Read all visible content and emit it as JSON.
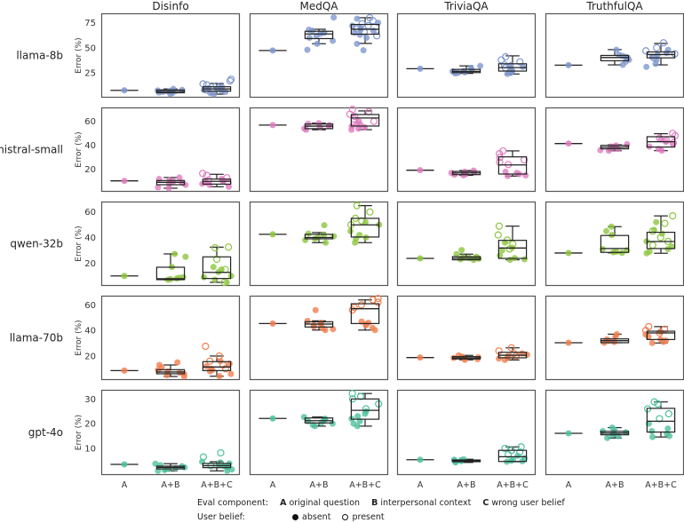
{
  "chart_data": {
    "type": "boxplot-facet",
    "columns": [
      "Disinfo",
      "MedQA",
      "TriviaQA",
      "TruthfulQA"
    ],
    "rows": [
      "llama-8b",
      "mistral-small",
      "qwen-32b",
      "llama-70b",
      "gpt-4o"
    ],
    "row_colors": [
      "#7f98cf",
      "#e07cc0",
      "#8dc63f",
      "#f07f50",
      "#4fc19e"
    ],
    "ylabel": "Error (%)",
    "categories": [
      "A",
      "A+B",
      "A+B+C"
    ],
    "grid": false,
    "y_axes": [
      {
        "ylim": [
          0.3,
          84.4
        ],
        "ticks": [
          "25",
          "50",
          "75"
        ]
      },
      {
        "ylim": [
          1.3,
          71.6
        ],
        "ticks": [
          "20",
          "40",
          "60"
        ]
      },
      {
        "ylim": [
          2.2,
          68.1
        ],
        "ticks": [
          "20",
          "40",
          "60"
        ]
      },
      {
        "ylim": [
          1.2,
          67.2
        ],
        "ticks": [
          "20",
          "40",
          "60"
        ]
      },
      {
        "ylim": [
          -0.8,
          33.7
        ],
        "ticks": [
          "10",
          "20",
          "30"
        ]
      }
    ],
    "panels": [
      [
        {
          "A": 7.6,
          "AB": {
            "box": [
              5,
              5.2,
              6.5,
              8,
              9
            ],
            "absent": [
              4,
              5,
              5.5,
              6,
              6.5,
              7,
              7.5,
              8,
              9
            ]
          },
          "ABC": {
            "box": [
              3.8,
              6.8,
              9,
              11.2,
              14.4
            ],
            "absent": [
              3.8,
              5,
              6,
              7,
              8,
              9,
              10,
              11
            ],
            "present": [
              8,
              10,
              12,
              13,
              14,
              17,
              18.6
            ]
          }
        },
        {
          "A": 47.3,
          "AB": {
            "box": [
              54.1,
              59.2,
              63.8,
              66.5,
              68.5
            ],
            "absent": [
              48,
              54,
              57,
              60,
              62,
              64,
              65,
              67,
              68,
              80.3
            ]
          },
          "ABC": {
            "box": [
              54.4,
              63.6,
              68.5,
              73.3,
              80
            ],
            "absent": [
              47.5,
              54,
              60,
              63,
              65,
              67,
              68,
              70,
              72,
              75,
              79
            ],
            "present": [
              62,
              66,
              69,
              72,
              74,
              77,
              80
            ]
          }
        },
        {
          "A": 29.2,
          "AB": {
            "box": [
              24.5,
              25.3,
              26.5,
              28.5,
              32
            ],
            "absent": [
              24.5,
              25,
              25.5,
              26,
              26.5,
              27,
              28,
              30,
              32
            ]
          },
          "ABC": {
            "box": [
              23.9,
              26.8,
              30.3,
              34.1,
              42
            ],
            "absent": [
              24,
              25,
              27,
              29,
              31,
              33
            ],
            "present": [
              26,
              30,
              33,
              36,
              38,
              41
            ]
          }
        },
        {
          "A": 32.7,
          "AB": {
            "box": [
              33,
              37.1,
              40.3,
              42.4,
              48.2
            ],
            "absent": [
              33,
              36,
              38,
              40,
              41,
              42,
              43,
              48
            ]
          },
          "ABC": {
            "box": [
              33,
              40,
              43.3,
              45.9,
              54.4
            ],
            "absent": [
              31,
              34,
              38,
              41,
              43,
              45,
              48
            ],
            "present": [
              40,
              44,
              47,
              50,
              55
            ]
          }
        }
      ],
      [
        {
          "A": 10.4,
          "AB": {
            "box": [
              4.3,
              7.2,
              9.2,
              10.7,
              13.2
            ],
            "absent": [
              4.3,
              5,
              7,
              8,
              9,
              10,
              11,
              12,
              13.2
            ]
          },
          "ABC": {
            "box": [
              5.5,
              7.7,
              10,
              11.9,
              15.9
            ],
            "absent": [
              5.5,
              7,
              8,
              9,
              10,
              11,
              12
            ],
            "present": [
              9,
              11,
              13,
              15,
              16.6
            ]
          }
        },
        {
          "A": 56.9,
          "AB": {
            "box": [
              53,
              53.9,
              56,
              57.8,
              58.5
            ],
            "absent": [
              53,
              54,
              55,
              56,
              57,
              58,
              58.5
            ]
          },
          "ABC": {
            "box": [
              53.1,
              56.1,
              62.8,
              65.7,
              68.7
            ],
            "absent": [
              53,
              54,
              55,
              56,
              57,
              58,
              60
            ],
            "present": [
              60,
              62,
              64,
              66,
              68,
              70
            ]
          }
        },
        {
          "A": 19.3,
          "AB": {
            "box": [
              15,
              15.6,
              17,
              18.3,
              19
            ],
            "absent": [
              15,
              15.5,
              16,
              16.5,
              17,
              17.5,
              18,
              19
            ]
          },
          "ABC": {
            "box": [
              14.4,
              16.1,
              23.7,
              30.4,
              35.4
            ],
            "absent": [
              14.4,
              15,
              16,
              17,
              18
            ],
            "present": [
              24,
              26,
              28,
              30,
              33,
              35.4
            ]
          }
        },
        {
          "A": 41.5,
          "AB": {
            "box": [
              35.5,
              37.1,
              38.5,
              40,
              40.5
            ],
            "absent": [
              35.5,
              36,
              37,
              38,
              39,
              40,
              41
            ]
          },
          "ABC": {
            "box": [
              35.6,
              38.6,
              43,
              47.2,
              49.7
            ],
            "absent": [
              35.6,
              37,
              39,
              41,
              43,
              45
            ],
            "present": [
              42,
              44,
              46,
              48,
              50
            ]
          }
        }
      ],
      [
        {
          "A": 10,
          "AB": {
            "box": [
              7,
              7.1,
              7.8,
              16.8,
              27.2
            ],
            "absent": [
              7,
              7.5,
              8,
              8.5,
              9,
              17,
              25,
              27.2
            ]
          },
          "ABC": {
            "box": [
              5,
              8,
              12.8,
              24.9,
              32.5
            ],
            "absent": [
              5,
              7,
              9,
              10,
              13,
              15,
              17
            ],
            "present": [
              5,
              15,
              23,
              32,
              32.5
            ]
          }
        },
        {
          "A": 42.5,
          "AB": {
            "box": [
              36,
              39,
              40,
              42.5,
              43.9
            ],
            "absent": [
              36,
              38,
              39,
              40,
              41,
              42,
              43,
              49.6
            ]
          },
          "ABC": {
            "box": [
              36,
              40.4,
              49.9,
              55,
              64.9
            ],
            "absent": [
              36,
              39,
              40,
              42,
              45,
              50,
              52
            ],
            "present": [
              50,
              53,
              55,
              60,
              64.9
            ]
          }
        },
        {
          "A": 23.7,
          "AB": {
            "box": [
              22.6,
              22.6,
              23.8,
              25.1,
              27
            ],
            "absent": [
              22.6,
              23,
              23.5,
              24,
              24.5,
              25,
              27,
              30.2
            ]
          },
          "ABC": {
            "box": [
              22.6,
              23.7,
              31.8,
              37.8,
              48.9
            ],
            "absent": [
              22.6,
              23,
              24,
              26,
              30,
              32,
              36
            ],
            "present": [
              31,
              35,
              38,
              42,
              48.9
            ]
          }
        },
        {
          "A": 27.9,
          "AB": {
            "box": [
              28,
              28.4,
              31.4,
              41.6,
              48.5
            ],
            "absent": [
              28,
              28.5,
              29,
              30,
              31,
              42,
              45,
              48.5
            ]
          },
          "ABC": {
            "box": [
              27.7,
              31.4,
              36.9,
              44.1,
              56.9
            ],
            "absent": [
              27.7,
              29,
              31,
              33,
              37,
              43,
              46,
              52
            ],
            "present": [
              34,
              37,
              40,
              45,
              51,
              56.9
            ]
          }
        }
      ],
      [
        {
          "A": 8.6,
          "AB": {
            "box": [
              4,
              6.1,
              7.5,
              9.3,
              13
            ],
            "absent": [
              4,
              5,
              6,
              7,
              8,
              9,
              11,
              13,
              15
            ]
          },
          "ABC": {
            "box": [
              4.2,
              8.6,
              11.4,
              15.6,
              20
            ],
            "absent": [
              4.2,
              6,
              8,
              9,
              10,
              12,
              14,
              16
            ],
            "present": [
              10,
              13,
              16,
              20,
              27.6
            ]
          }
        },
        {
          "A": 45.4,
          "AB": {
            "box": [
              40.3,
              42.7,
              45,
              46.8,
              47.5
            ],
            "absent": [
              40.3,
              41,
              42,
              43,
              44,
              45,
              46,
              47.5,
              55.9
            ]
          },
          "ABC": {
            "box": [
              40.3,
              45.4,
              57,
              60.9,
              63.9
            ],
            "absent": [
              40.3,
              42,
              44,
              45,
              46,
              47
            ],
            "present": [
              56,
              58,
              60,
              62,
              64,
              65
            ]
          }
        },
        {
          "A": 18.8,
          "AB": {
            "box": [
              17,
              17.7,
              18.5,
              19.5,
              20.5
            ],
            "absent": [
              17,
              17.5,
              18,
              18.5,
              19,
              19.5,
              20.5
            ]
          },
          "ABC": {
            "box": [
              16.9,
              18.6,
              20.6,
              22.9,
              26.4
            ],
            "absent": [
              16.9,
              18,
              19,
              20,
              21,
              22
            ],
            "present": [
              20,
              22,
              24,
              26.4
            ]
          }
        },
        {
          "A": 30.4,
          "AB": {
            "box": [
              30.4,
              30.4,
              32,
              33.4,
              37.1
            ],
            "absent": [
              30.4,
              31,
              32,
              33,
              35,
              37.1
            ]
          },
          "ABC": {
            "box": [
              30.2,
              32.9,
              38,
              39.4,
              43
            ],
            "absent": [
              30.2,
              31,
              32,
              33,
              35,
              37,
              39
            ],
            "present": [
              38,
              40,
              41,
              43
            ]
          }
        }
      ],
      [
        {
          "A": 3.5,
          "AB": {
            "box": [
              0.9,
              1.7,
              2.3,
              2.8,
              3.8
            ],
            "absent": [
              0.9,
              1.2,
              1.7,
              2,
              2.3,
              2.8,
              3.2,
              3.8
            ]
          },
          "ABC": {
            "box": [
              0.9,
              2.2,
              3,
              3.9,
              4.6
            ],
            "absent": [
              0.9,
              1.5,
              2.2,
              2.8,
              3.2,
              3.9,
              4.6
            ],
            "present": [
              3,
              4,
              6.5,
              8.2
            ]
          }
        },
        {
          "A": 22.1,
          "AB": {
            "box": [
              19,
              20.3,
              21.2,
              22.3,
              22.7
            ],
            "absent": [
              19,
              19.5,
              20,
              20.5,
              21,
              21.5,
              22,
              22.7
            ]
          },
          "ABC": {
            "box": [
              19,
              21.8,
              25.4,
              30,
              32.2
            ],
            "absent": [
              19,
              20,
              21,
              22,
              23,
              24,
              25
            ],
            "present": [
              26,
              28,
              30,
              31,
              32.2
            ]
          }
        },
        {
          "A": 5.4,
          "AB": {
            "box": [
              4.3,
              4.6,
              4.9,
              5.3,
              5.6
            ],
            "absent": [
              4.3,
              4.6,
              4.8,
              5,
              5.2,
              5.4,
              5.6
            ]
          },
          "ABC": {
            "box": [
              4.6,
              4.7,
              6.6,
              9.2,
              10.6
            ],
            "absent": [
              4.6,
              4.8,
              5,
              5.5,
              6,
              7
            ],
            "present": [
              7.5,
              8.5,
              9.2,
              10,
              10.6
            ]
          }
        },
        {
          "A": 16.1,
          "AB": {
            "box": [
              14.2,
              15.5,
              16.2,
              16.9,
              18.4
            ],
            "absent": [
              14.2,
              15,
              15.5,
              16,
              16.5,
              17,
              17.5,
              18.4
            ]
          },
          "ABC": {
            "box": [
              14.6,
              16.6,
              21,
              26.2,
              28.8
            ],
            "absent": [
              14.6,
              15,
              16,
              17,
              18,
              20
            ],
            "present": [
              22,
              24,
              26,
              28,
              28.8
            ]
          }
        }
      ]
    ]
  },
  "legend": {
    "eval_title": "Eval component:",
    "eval_items": [
      {
        "key": "A",
        "label": "original question"
      },
      {
        "key": "B",
        "label": "interpersonal context"
      },
      {
        "key": "C",
        "label": "wrong user belief"
      }
    ],
    "belief_title": "User belief:",
    "belief_items": [
      {
        "marker": "filled-circle",
        "label": "absent"
      },
      {
        "marker": "open-circle",
        "label": "present"
      }
    ]
  }
}
